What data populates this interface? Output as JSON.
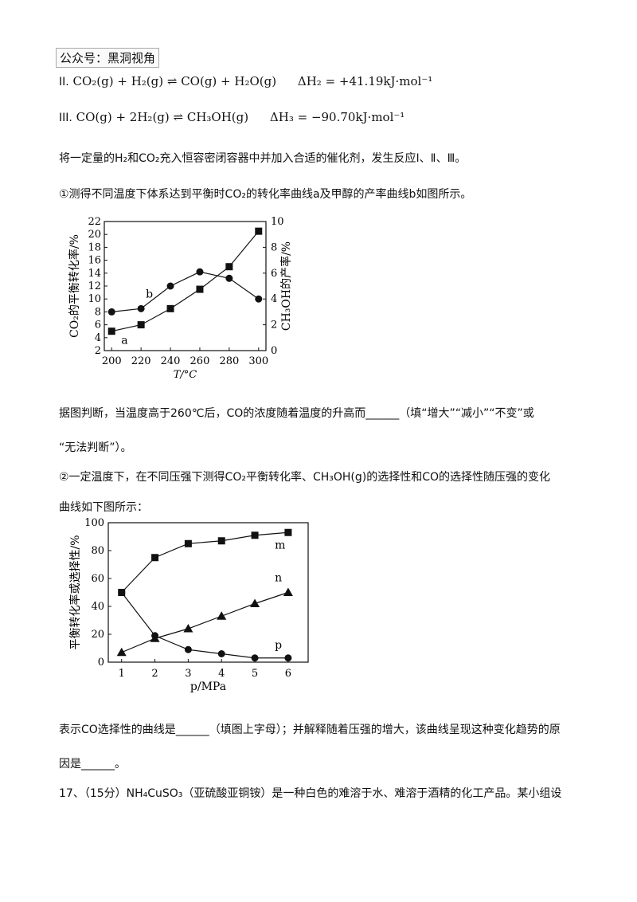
{
  "watermark": "公众号：黑洞视角",
  "reactions": {
    "r2_label": "II.",
    "r2_eq": "CO₂(g) + H₂(g) ⇌ CO(g) + H₂O(g)",
    "r2_dh": "ΔH₂ = +41.19kJ·mol⁻¹",
    "r3_label": "III.",
    "r3_eq": "CO(g) + 2H₂(g) ⇌ CH₃OH(g)",
    "r3_dh": "ΔH₃ = −90.70kJ·mol⁻¹"
  },
  "para1": "将一定量的H₂和CO₂充入恒容密闭容器中并加入合适的催化剂，发生反应Ⅰ、Ⅱ、Ⅲ。",
  "para2": "①测得不同温度下体系达到平衡时CO₂的转化率曲线a及甲醇的产率曲线b如图所示。",
  "para3": "据图判断，当温度高于260℃后，CO的浓度随着温度的升高而______（填“增大”“减小”“不变”或",
  "para4": "“无法判断”）。",
  "para5": "②一定温度下，在不同压强下测得CO₂平衡转化率、CH₃OH(g)的选择性和CO的选择性随压强的变化",
  "para6": "曲线如下图所示：",
  "para7": "表示CO选择性的曲线是______（填图上字母）；并解释随着压强的增大，该曲线呈现这种变化趋势的原",
  "para8": "因是______。",
  "para9": "17、（15分）NH₄CuSO₃（亚硫酸亚铜铵）是一种白色的难溶于水、难溶于酒精的化工产品。某小组设",
  "chart_data": [
    {
      "type": "line",
      "x": [
        200,
        220,
        240,
        260,
        280,
        300
      ],
      "xlabel": "T/°C",
      "ylabel": "CO₂的平衡转化率/%",
      "ylabel_right": "CH₃OH的产率/%",
      "xlim": [
        195,
        305
      ],
      "ylim": [
        2,
        22
      ],
      "ylim_right": [
        0,
        10
      ],
      "xticks": [
        200,
        220,
        240,
        260,
        280,
        300
      ],
      "yticks": [
        2,
        4,
        6,
        8,
        10,
        12,
        14,
        16,
        18,
        20,
        22
      ],
      "yticks_right": [
        0,
        2,
        4,
        6,
        8,
        10
      ],
      "grid": false,
      "series": [
        {
          "name": "a",
          "marker": "square",
          "axis": "left",
          "values": [
            5,
            6,
            8.5,
            11.5,
            15,
            20.5
          ]
        },
        {
          "name": "b",
          "marker": "circle",
          "axis": "right",
          "values": [
            3,
            3.25,
            5,
            6.1,
            5.6,
            4
          ]
        }
      ]
    },
    {
      "type": "line",
      "x": [
        1,
        2,
        3,
        4,
        5,
        6
      ],
      "xlabel": "p/MPa",
      "ylabel": "平衡转化率或选择性/%",
      "xlim": [
        0.6,
        6.6
      ],
      "ylim": [
        0,
        100
      ],
      "xticks": [
        1,
        2,
        3,
        4,
        5,
        6
      ],
      "yticks": [
        0,
        20,
        40,
        60,
        80,
        100
      ],
      "grid": false,
      "series": [
        {
          "name": "m",
          "marker": "square",
          "values": [
            50,
            75,
            85,
            87,
            91,
            93
          ]
        },
        {
          "name": "n",
          "marker": "triangle",
          "values": [
            7,
            17,
            24,
            33,
            42,
            50
          ]
        },
        {
          "name": "p",
          "marker": "circle",
          "values": [
            50,
            19,
            9,
            6,
            3,
            3
          ]
        }
      ]
    }
  ]
}
